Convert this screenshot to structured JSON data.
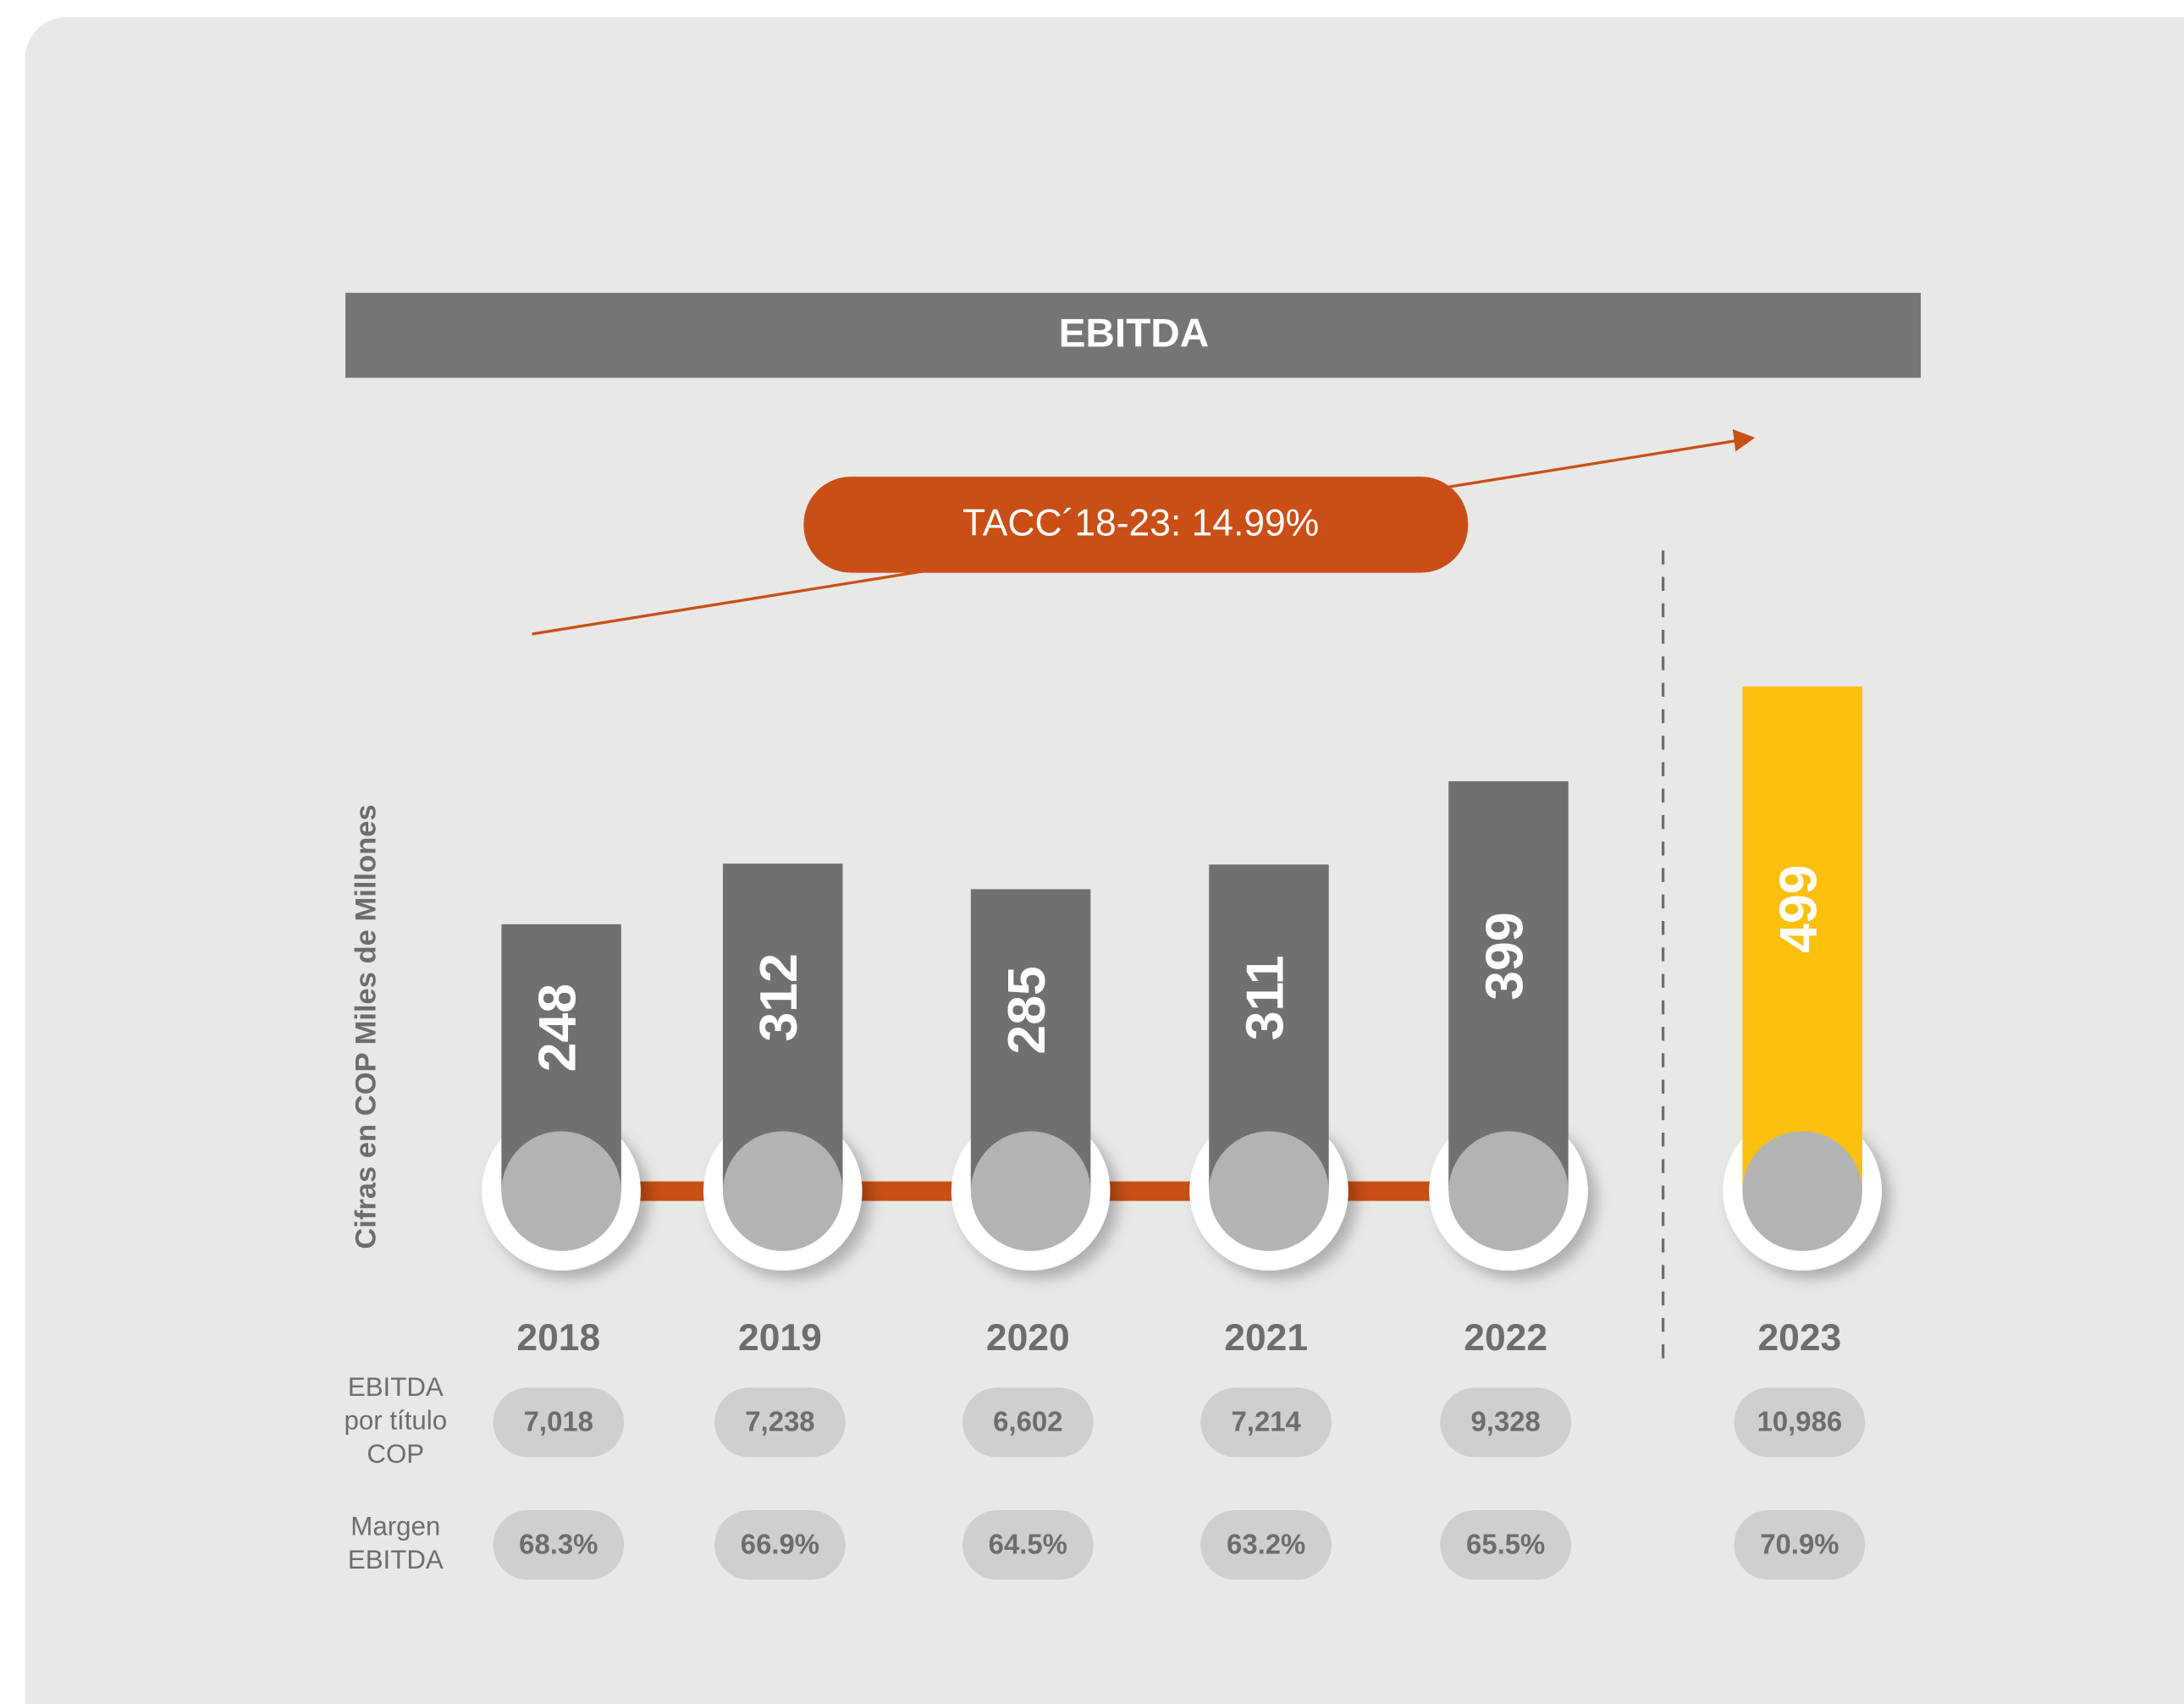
{
  "chart_data": {
    "type": "bar",
    "title": "EBITDA",
    "y_label": "Cifras en COP Miles de Millones",
    "annotation": "TACC´18-23: 14.99%",
    "categories": [
      "2018",
      "2019",
      "2020",
      "2021",
      "2022",
      "2023"
    ],
    "values": [
      248,
      312,
      285,
      311,
      399,
      499
    ],
    "colors": [
      "#717070",
      "#717070",
      "#717070",
      "#717070",
      "#717070",
      "#fbc00e"
    ],
    "table": [
      {
        "name": "EBITDA por título COP",
        "values": [
          7018,
          7238,
          6602,
          7214,
          9328,
          10986
        ],
        "value_labels": [
          "7,018",
          "7,238",
          "6,602",
          "7,214",
          "9,328",
          "10,986"
        ]
      },
      {
        "name": "Margen EBITDA",
        "values": [
          68.3,
          66.9,
          64.5,
          63.2,
          65.5,
          70.9
        ],
        "value_labels": [
          "68.3%",
          "66.9%",
          "64.5%",
          "63.2%",
          "65.5%",
          "70.9%"
        ]
      }
    ]
  }
}
